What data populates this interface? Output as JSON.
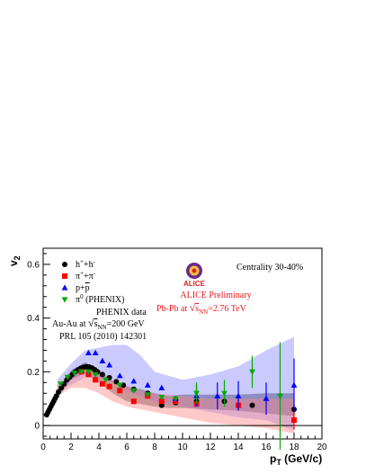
{
  "chart_data": {
    "type": "scatter",
    "xlabel_main": "p",
    "xlabel_sub": "T",
    "xlabel_unit": " (GeV/c)",
    "ylabel_main": "v",
    "ylabel_sub": "2",
    "xlim": [
      0,
      20
    ],
    "ylim": [
      -0.05,
      0.66
    ],
    "xticks": [
      0,
      2,
      4,
      6,
      8,
      10,
      12,
      14,
      16,
      18,
      20
    ],
    "yticks": [
      0,
      0.2,
      0.4,
      0.6
    ],
    "ytick_labels": [
      "0",
      "0.2",
      "0.4",
      "0.6"
    ],
    "legend_placement": "top-left",
    "annotations": {
      "centrality": "Centrality 30-40%",
      "logo_word": "ALICE",
      "alice_preliminary": "ALICE Preliminary",
      "pbpb_prefix": "Pb-Pb at ",
      "pbpb_sqrt": "s",
      "pbpb_sub": "NN",
      "pbpb_value": "=2.76 TeV",
      "phenix_title": "PHENIX data",
      "auau_prefix": "Au-Au at ",
      "auau_sqrt": "s",
      "auau_sub": "NN",
      "auau_value": "=200 GeV",
      "reference": "PRL 105 (2010) 142301"
    },
    "bands": [
      {
        "name": "h-band",
        "color": "#555555",
        "opacity": 0.55,
        "upper": [
          [
            0.3,
            0.04
          ],
          [
            1,
            0.13
          ],
          [
            2,
            0.205
          ],
          [
            3,
            0.235
          ],
          [
            4,
            0.205
          ],
          [
            5,
            0.165
          ],
          [
            6,
            0.145
          ],
          [
            7,
            0.135
          ],
          [
            8,
            0.12
          ],
          [
            9,
            0.11
          ],
          [
            10,
            0.115
          ],
          [
            12,
            0.115
          ],
          [
            14,
            0.115
          ],
          [
            16,
            0.12
          ],
          [
            18,
            0.12
          ]
        ],
        "lower": [
          [
            18,
            0.035
          ],
          [
            16,
            0.045
          ],
          [
            14,
            0.055
          ],
          [
            12,
            0.06
          ],
          [
            10,
            0.065
          ],
          [
            9,
            0.065
          ],
          [
            8,
            0.07
          ],
          [
            7,
            0.08
          ],
          [
            6,
            0.09
          ],
          [
            5,
            0.12
          ],
          [
            4,
            0.16
          ],
          [
            3,
            0.195
          ],
          [
            2,
            0.17
          ],
          [
            1,
            0.1
          ],
          [
            0.3,
            0.025
          ]
        ]
      },
      {
        "name": "proton-band",
        "color": "#6666ff",
        "opacity": 0.35,
        "upper": [
          [
            1,
            0.17
          ],
          [
            2,
            0.23
          ],
          [
            3,
            0.28
          ],
          [
            4,
            0.29
          ],
          [
            5,
            0.3
          ],
          [
            6,
            0.3
          ],
          [
            7,
            0.26
          ],
          [
            8,
            0.2
          ],
          [
            10,
            0.17
          ],
          [
            12,
            0.19
          ],
          [
            14,
            0.22
          ],
          [
            16,
            0.28
          ],
          [
            18,
            0.33
          ]
        ],
        "lower": [
          [
            18,
            -0.02
          ],
          [
            16,
            0.02
          ],
          [
            14,
            0.03
          ],
          [
            12,
            0.05
          ],
          [
            10,
            0.07
          ],
          [
            8,
            0.09
          ],
          [
            7,
            0.11
          ],
          [
            6,
            0.13
          ],
          [
            5,
            0.16
          ],
          [
            4,
            0.18
          ],
          [
            3,
            0.18
          ],
          [
            2,
            0.15
          ],
          [
            1,
            0.12
          ]
        ]
      },
      {
        "name": "pion-band",
        "color": "#ff8888",
        "opacity": 0.45,
        "upper": [
          [
            1,
            0.15
          ],
          [
            2,
            0.2
          ],
          [
            3,
            0.22
          ],
          [
            4,
            0.2
          ],
          [
            5,
            0.17
          ],
          [
            6,
            0.15
          ],
          [
            7,
            0.13
          ],
          [
            8,
            0.12
          ],
          [
            10,
            0.11
          ],
          [
            12,
            0.1
          ],
          [
            14,
            0.1
          ],
          [
            16,
            0.1
          ],
          [
            18,
            0.1
          ]
        ],
        "lower": [
          [
            18,
            -0.03
          ],
          [
            16,
            -0.01
          ],
          [
            14,
            0.0
          ],
          [
            12,
            0.01
          ],
          [
            10,
            0.03
          ],
          [
            8,
            0.05
          ],
          [
            7,
            0.06
          ],
          [
            6,
            0.07
          ],
          [
            5,
            0.09
          ],
          [
            4,
            0.12
          ],
          [
            3,
            0.14
          ],
          [
            2,
            0.14
          ],
          [
            1,
            0.11
          ]
        ]
      }
    ],
    "series": [
      {
        "name": "h",
        "legend_sup1": "+",
        "legend_mid": "+h",
        "legend_sup2": "-",
        "marker": "circle",
        "color": "#000000",
        "points": [
          [
            0.25,
            0.04
          ],
          [
            0.35,
            0.05
          ],
          [
            0.45,
            0.06
          ],
          [
            0.55,
            0.07
          ],
          [
            0.65,
            0.08
          ],
          [
            0.75,
            0.09
          ],
          [
            0.85,
            0.1
          ],
          [
            0.95,
            0.11
          ],
          [
            1.1,
            0.125
          ],
          [
            1.3,
            0.14
          ],
          [
            1.5,
            0.155
          ],
          [
            1.7,
            0.17
          ],
          [
            1.9,
            0.18
          ],
          [
            2.1,
            0.19
          ],
          [
            2.3,
            0.2
          ],
          [
            2.5,
            0.207
          ],
          [
            2.7,
            0.213
          ],
          [
            2.9,
            0.217
          ],
          [
            3.1,
            0.219
          ],
          [
            3.3,
            0.218
          ],
          [
            3.5,
            0.214
          ],
          [
            3.7,
            0.208
          ],
          [
            3.9,
            0.2
          ],
          [
            4.25,
            0.19
          ],
          [
            4.75,
            0.178
          ],
          [
            5.25,
            0.163
          ],
          [
            5.75,
            0.15
          ],
          [
            6.5,
            0.135
          ],
          [
            7.5,
            0.12
          ],
          [
            8.5,
            0.075
          ],
          [
            9.5,
            0.085
          ],
          [
            11,
            0.09
          ],
          [
            13,
            0.09
          ],
          [
            15,
            0.075
          ],
          [
            18,
            0.06
          ]
        ],
        "errors": [
          [
            18,
            0.02
          ]
        ]
      },
      {
        "name": "pi",
        "legend_sup1": "+",
        "legend_mid": "+π",
        "legend_sup2": "-",
        "legend_prefix": "π",
        "marker": "square",
        "color": "#ff0000",
        "points": [
          [
            2.75,
            0.2
          ],
          [
            3.25,
            0.19
          ],
          [
            3.75,
            0.17
          ],
          [
            4.25,
            0.155
          ],
          [
            4.75,
            0.145
          ],
          [
            5.5,
            0.13
          ],
          [
            6.5,
            0.09
          ],
          [
            7.5,
            0.11
          ],
          [
            8.5,
            0.09
          ],
          [
            9.5,
            0.09
          ],
          [
            11,
            0.08
          ],
          [
            14,
            0.075
          ],
          [
            18,
            0.02
          ]
        ],
        "errors": [
          [
            14,
            0.02
          ],
          [
            18,
            0.035
          ]
        ]
      },
      {
        "name": "p",
        "legend_text": "p+p",
        "marker": "triangle-up",
        "color": "#0000ff",
        "points": [
          [
            3.25,
            0.27
          ],
          [
            3.75,
            0.27
          ],
          [
            4.25,
            0.24
          ],
          [
            4.75,
            0.225
          ],
          [
            5.5,
            0.185
          ],
          [
            6.5,
            0.165
          ],
          [
            7.5,
            0.15
          ],
          [
            8.5,
            0.14
          ],
          [
            9.5,
            0.1
          ],
          [
            11,
            0.11
          ],
          [
            12.5,
            0.11
          ],
          [
            14,
            0.11
          ],
          [
            16,
            0.1
          ],
          [
            18,
            0.15
          ]
        ],
        "errors": [
          [
            11,
            0.04
          ],
          [
            12.5,
            0.05
          ],
          [
            14,
            0.055
          ],
          [
            16,
            0.06
          ],
          [
            18,
            0.1
          ]
        ]
      },
      {
        "name": "pi0",
        "legend_prefix": "π",
        "legend_sup1": "0",
        "legend_mid": " (PHENIX)",
        "marker": "triangle-down",
        "color": "#00aa00",
        "points": [
          [
            1.25,
            0.155
          ],
          [
            1.75,
            0.18
          ],
          [
            2.25,
            0.195
          ],
          [
            2.75,
            0.2
          ],
          [
            3.25,
            0.2
          ],
          [
            3.75,
            0.19
          ],
          [
            4.5,
            0.17
          ],
          [
            5.5,
            0.15
          ],
          [
            6.5,
            0.13
          ],
          [
            7.5,
            0.115
          ],
          [
            8.5,
            0.105
          ],
          [
            9.5,
            0.1
          ],
          [
            11,
            0.12
          ],
          [
            13,
            0.12
          ],
          [
            15,
            0.2
          ],
          [
            17,
            0.11
          ]
        ],
        "errors": [
          [
            11,
            0.04
          ],
          [
            13,
            0.05
          ],
          [
            15,
            0.06
          ],
          [
            17,
            0.2
          ]
        ]
      }
    ]
  }
}
